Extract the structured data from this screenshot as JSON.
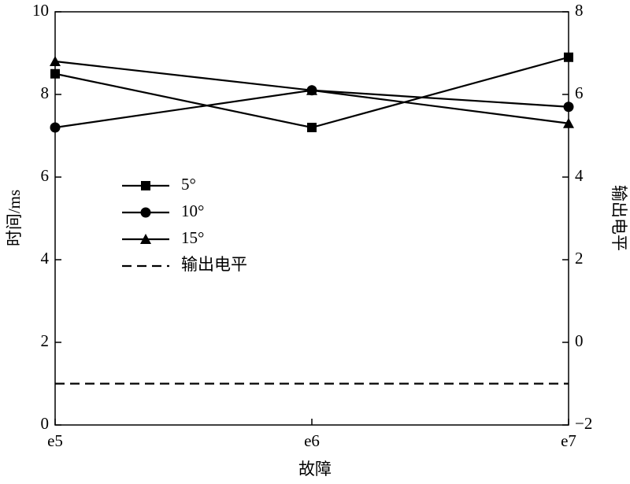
{
  "chart_data": {
    "type": "line",
    "categories": [
      "e5",
      "e6",
      "e7"
    ],
    "xlabel": "故障",
    "ylabel": "时间/ms",
    "y2label": "输出电平",
    "ylim": [
      0,
      10
    ],
    "yticks": [
      0,
      2,
      4,
      6,
      8,
      10
    ],
    "y2lim": [
      -2,
      8
    ],
    "y2ticks": [
      {
        "value": -2,
        "label": "−2"
      },
      0,
      2,
      4,
      6,
      8
    ],
    "legend": "left",
    "series": [
      {
        "name": "5°",
        "color": "#000000",
        "marker": "square",
        "values": [
          8.5,
          7.2,
          8.9
        ]
      },
      {
        "name": "10°",
        "color": "#000000",
        "marker": "circle",
        "values": [
          7.2,
          8.1,
          7.7
        ]
      },
      {
        "name": "15°",
        "color": "#000000",
        "marker": "triangle",
        "values": [
          8.8,
          8.1,
          7.3
        ]
      },
      {
        "name": "输出电平",
        "color": "#000000",
        "marker": "none",
        "dashed": true,
        "axis": "y2",
        "values": [
          -1,
          -1,
          -1
        ]
      }
    ]
  }
}
